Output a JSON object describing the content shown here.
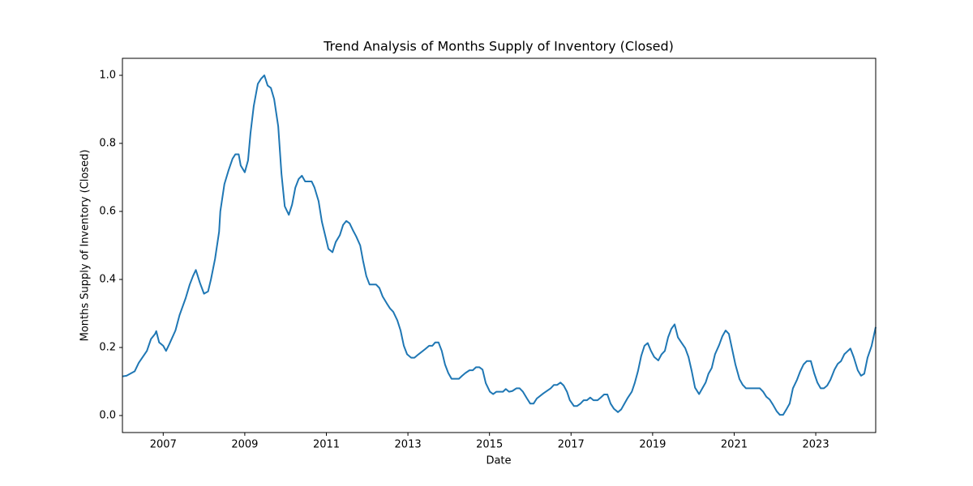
{
  "chart_data": {
    "type": "line",
    "title": "Trend Analysis of Months Supply of Inventory (Closed)",
    "xlabel": "Date",
    "ylabel": "Months Supply of Inventory (Closed)",
    "xlim": [
      2006.0,
      2024.47
    ],
    "ylim": [
      -0.05,
      1.05
    ],
    "xticks": [
      2007,
      2009,
      2011,
      2013,
      2015,
      2017,
      2019,
      2021,
      2023
    ],
    "yticks": [
      {
        "value": 0,
        "label": "0.0"
      },
      0.2,
      0.4,
      0.6,
      0.8,
      {
        "value": 1,
        "label": "1.0"
      }
    ],
    "grid": false,
    "x": [
      2006.0,
      2006.1,
      2006.3,
      2006.4,
      2006.6,
      2006.7,
      2006.8,
      2006.83,
      2006.9,
      2007.0,
      2007.07,
      2007.15,
      2007.3,
      2007.4,
      2007.55,
      2007.65,
      2007.73,
      2007.8,
      2007.9,
      2008.0,
      2008.1,
      2008.17,
      2008.27,
      2008.37,
      2008.4,
      2008.5,
      2008.6,
      2008.7,
      2008.77,
      2008.85,
      2008.9,
      2009.0,
      2009.08,
      2009.14,
      2009.22,
      2009.32,
      2009.4,
      2009.48,
      2009.56,
      2009.64,
      2009.72,
      2009.82,
      2009.9,
      2009.98,
      2010.08,
      2010.16,
      2010.24,
      2010.32,
      2010.4,
      2010.48,
      2010.64,
      2010.71,
      2010.81,
      2010.89,
      2010.97,
      2011.05,
      2011.15,
      2011.23,
      2011.33,
      2011.41,
      2011.49,
      2011.57,
      2011.65,
      2011.73,
      2011.83,
      2011.9,
      2011.98,
      2012.06,
      2012.22,
      2012.3,
      2012.38,
      2012.48,
      2012.56,
      2012.64,
      2012.74,
      2012.82,
      2012.9,
      2012.98,
      2013.08,
      2013.16,
      2013.26,
      2013.42,
      2013.52,
      2013.6,
      2013.67,
      2013.75,
      2013.83,
      2013.91,
      2013.99,
      2014.07,
      2014.25,
      2014.33,
      2014.41,
      2014.51,
      2014.59,
      2014.67,
      2014.75,
      2014.83,
      2014.91,
      2015.01,
      2015.09,
      2015.17,
      2015.33,
      2015.4,
      2015.48,
      2015.56,
      2015.66,
      2015.74,
      2015.82,
      2015.92,
      2016.0,
      2016.08,
      2016.16,
      2016.32,
      2016.5,
      2016.58,
      2016.66,
      2016.74,
      2016.82,
      2016.9,
      2016.97,
      2017.07,
      2017.15,
      2017.23,
      2017.31,
      2017.39,
      2017.47,
      2017.55,
      2017.65,
      2017.73,
      2017.81,
      2017.89,
      2017.97,
      2018.05,
      2018.15,
      2018.23,
      2018.31,
      2018.39,
      2018.49,
      2018.56,
      2018.64,
      2018.72,
      2018.8,
      2018.88,
      2018.96,
      2019.04,
      2019.14,
      2019.22,
      2019.3,
      2019.38,
      2019.46,
      2019.54,
      2019.62,
      2019.72,
      2019.8,
      2019.88,
      2019.96,
      2020.04,
      2020.14,
      2020.22,
      2020.3,
      2020.37,
      2020.45,
      2020.53,
      2020.63,
      2020.71,
      2020.79,
      2020.87,
      2020.95,
      2021.03,
      2021.13,
      2021.21,
      2021.29,
      2021.63,
      2021.71,
      2021.79,
      2021.87,
      2021.95,
      2022.04,
      2022.12,
      2022.2,
      2022.28,
      2022.36,
      2022.44,
      2022.54,
      2022.62,
      2022.7,
      2022.78,
      2022.88,
      2022.96,
      2023.04,
      2023.12,
      2023.2,
      2023.28,
      2023.36,
      2023.46,
      2023.54,
      2023.62,
      2023.7,
      2023.77,
      2023.85,
      2023.93,
      2024.03,
      2024.11,
      2024.19,
      2024.27,
      2024.37,
      2024.47
    ],
    "series": [
      {
        "name": "Months Supply of Inventory (Closed)",
        "color": "#1f77b4",
        "values": [
          0.115,
          0.117,
          0.13,
          0.155,
          0.19,
          0.225,
          0.24,
          0.248,
          0.215,
          0.205,
          0.19,
          0.21,
          0.25,
          0.295,
          0.345,
          0.385,
          0.41,
          0.428,
          0.39,
          0.358,
          0.365,
          0.4,
          0.46,
          0.54,
          0.6,
          0.68,
          0.72,
          0.755,
          0.768,
          0.768,
          0.735,
          0.715,
          0.75,
          0.83,
          0.91,
          0.975,
          0.99,
          1.0,
          0.97,
          0.963,
          0.93,
          0.85,
          0.71,
          0.615,
          0.59,
          0.62,
          0.67,
          0.695,
          0.705,
          0.688,
          0.688,
          0.67,
          0.63,
          0.57,
          0.53,
          0.49,
          0.48,
          0.51,
          0.53,
          0.56,
          0.572,
          0.565,
          0.545,
          0.527,
          0.5,
          0.455,
          0.41,
          0.385,
          0.385,
          0.375,
          0.35,
          0.33,
          0.315,
          0.305,
          0.28,
          0.25,
          0.205,
          0.18,
          0.17,
          0.17,
          0.18,
          0.195,
          0.205,
          0.205,
          0.215,
          0.215,
          0.19,
          0.15,
          0.125,
          0.108,
          0.108,
          0.117,
          0.125,
          0.133,
          0.133,
          0.142,
          0.142,
          0.135,
          0.095,
          0.07,
          0.063,
          0.07,
          0.07,
          0.078,
          0.07,
          0.072,
          0.08,
          0.08,
          0.07,
          0.05,
          0.035,
          0.035,
          0.05,
          0.065,
          0.08,
          0.09,
          0.09,
          0.097,
          0.088,
          0.07,
          0.045,
          0.028,
          0.028,
          0.035,
          0.045,
          0.045,
          0.053,
          0.045,
          0.045,
          0.053,
          0.062,
          0.062,
          0.035,
          0.02,
          0.01,
          0.018,
          0.035,
          0.052,
          0.07,
          0.095,
          0.13,
          0.175,
          0.205,
          0.213,
          0.19,
          0.172,
          0.162,
          0.18,
          0.19,
          0.23,
          0.255,
          0.268,
          0.23,
          0.212,
          0.198,
          0.172,
          0.13,
          0.082,
          0.063,
          0.08,
          0.097,
          0.123,
          0.14,
          0.18,
          0.207,
          0.233,
          0.25,
          0.24,
          0.195,
          0.15,
          0.107,
          0.09,
          0.08,
          0.08,
          0.07,
          0.055,
          0.047,
          0.032,
          0.013,
          0.002,
          0.002,
          0.018,
          0.035,
          0.08,
          0.105,
          0.13,
          0.15,
          0.16,
          0.16,
          0.125,
          0.097,
          0.08,
          0.08,
          0.088,
          0.105,
          0.135,
          0.152,
          0.16,
          0.18,
          0.188,
          0.197,
          0.172,
          0.133,
          0.117,
          0.123,
          0.17,
          0.205,
          0.26
        ]
      }
    ]
  }
}
